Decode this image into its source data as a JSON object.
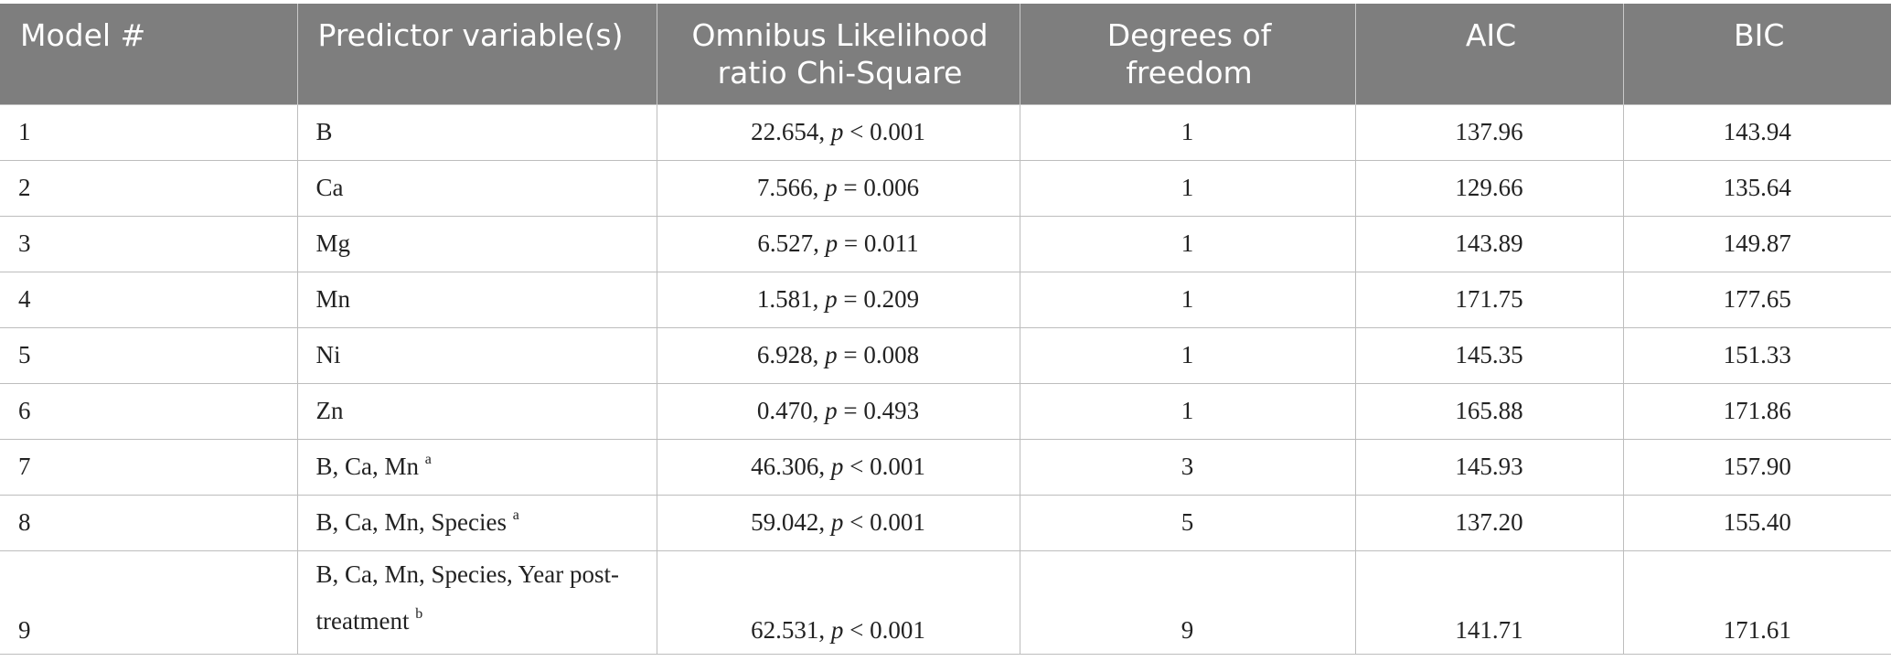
{
  "table": {
    "headers": [
      "Model #",
      "Predictor variable(s)",
      "Omnibus Likelihood ratio Chi-Square",
      "Degrees of freedom",
      "AIC",
      "BIC"
    ],
    "rows": [
      {
        "model": "1",
        "predictors": "B",
        "sup": "",
        "chi_value": "22.654,",
        "p_label": "p",
        "p_rest": " < 0.001",
        "df": "1",
        "aic": "137.96",
        "bic": "143.94"
      },
      {
        "model": "2",
        "predictors": "Ca",
        "sup": "",
        "chi_value": "7.566,",
        "p_label": "p",
        "p_rest": " = 0.006",
        "df": "1",
        "aic": "129.66",
        "bic": "135.64"
      },
      {
        "model": "3",
        "predictors": "Mg",
        "sup": "",
        "chi_value": "6.527,",
        "p_label": "p",
        "p_rest": " = 0.011",
        "df": "1",
        "aic": "143.89",
        "bic": "149.87"
      },
      {
        "model": "4",
        "predictors": "Mn",
        "sup": "",
        "chi_value": "1.581,",
        "p_label": "p",
        "p_rest": " = 0.209",
        "df": "1",
        "aic": "171.75",
        "bic": "177.65"
      },
      {
        "model": "5",
        "predictors": "Ni",
        "sup": "",
        "chi_value": "6.928,",
        "p_label": "p",
        "p_rest": " = 0.008",
        "df": "1",
        "aic": "145.35",
        "bic": "151.33"
      },
      {
        "model": "6",
        "predictors": "Zn",
        "sup": "",
        "chi_value": "0.470,",
        "p_label": "p",
        "p_rest": " = 0.493",
        "df": "1",
        "aic": "165.88",
        "bic": "171.86"
      },
      {
        "model": "7",
        "predictors": "B, Ca, Mn ",
        "sup": "a",
        "chi_value": "46.306,",
        "p_label": "p",
        "p_rest": " < 0.001",
        "df": "3",
        "aic": "145.93",
        "bic": "157.90"
      },
      {
        "model": "8",
        "predictors": "B, Ca, Mn, Species ",
        "sup": "a",
        "chi_value": "59.042,",
        "p_label": "p",
        "p_rest": " < 0.001",
        "df": "5",
        "aic": "137.20",
        "bic": "155.40"
      },
      {
        "model": "9",
        "predictors": "B, Ca, Mn, Species, Year post-treatment ",
        "sup": "b",
        "chi_value": "62.531,",
        "p_label": "p",
        "p_rest": " < 0.001",
        "df": "9",
        "aic": "141.71",
        "bic": "171.61"
      }
    ]
  }
}
